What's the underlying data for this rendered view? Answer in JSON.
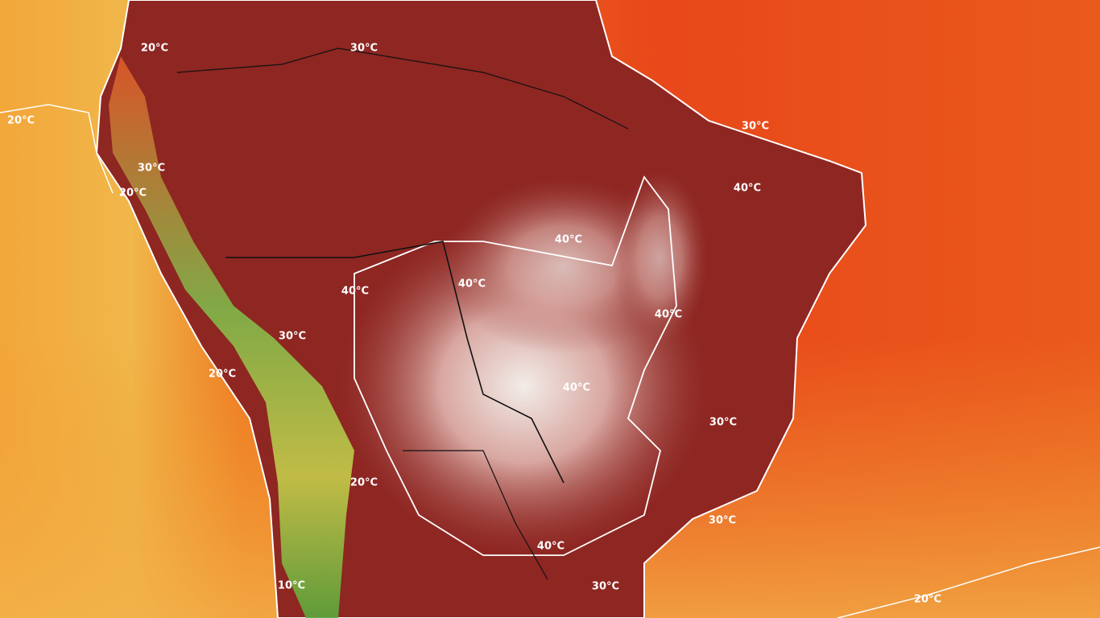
{
  "contour_labels": [
    "20°C",
    "30°C",
    "20°C",
    "30°C",
    "30°C",
    "20°C",
    "40°C",
    "40°C",
    "40°C",
    "40°C",
    "40°C",
    "30°C",
    "20°C",
    "40°C",
    "30°C",
    "20°C",
    "30°C",
    "40°C",
    "10°C",
    "30°C",
    "20°C"
  ]
}
